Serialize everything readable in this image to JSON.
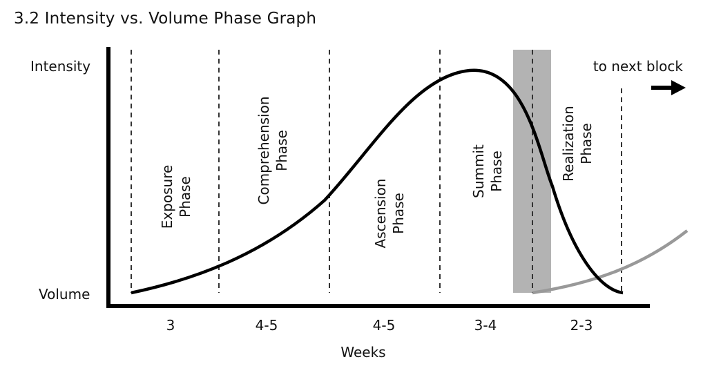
{
  "title": "3.2 Intensity vs. Volume Phase Graph",
  "y_labels": {
    "top": "Intensity",
    "bottom": "Volume"
  },
  "x_label": "Weeks",
  "next_block_label": "to next block",
  "phases": [
    {
      "line1": "Exposure",
      "line2": "Phase",
      "weeks": "3"
    },
    {
      "line1": "Comprehension",
      "line2": "Phase",
      "weeks": "4-5"
    },
    {
      "line1": "Ascension",
      "line2": "Phase",
      "weeks": "4-5"
    },
    {
      "line1": "Summit",
      "line2": "Phase",
      "weeks": "3-4"
    },
    {
      "line1": "Realization",
      "line2": "Phase",
      "weeks": "2-3"
    }
  ],
  "colors": {
    "intensity_curve": "#000000",
    "next_curve": "#999999",
    "highlight_band": "#b3b3b3",
    "axis": "#000000"
  }
}
